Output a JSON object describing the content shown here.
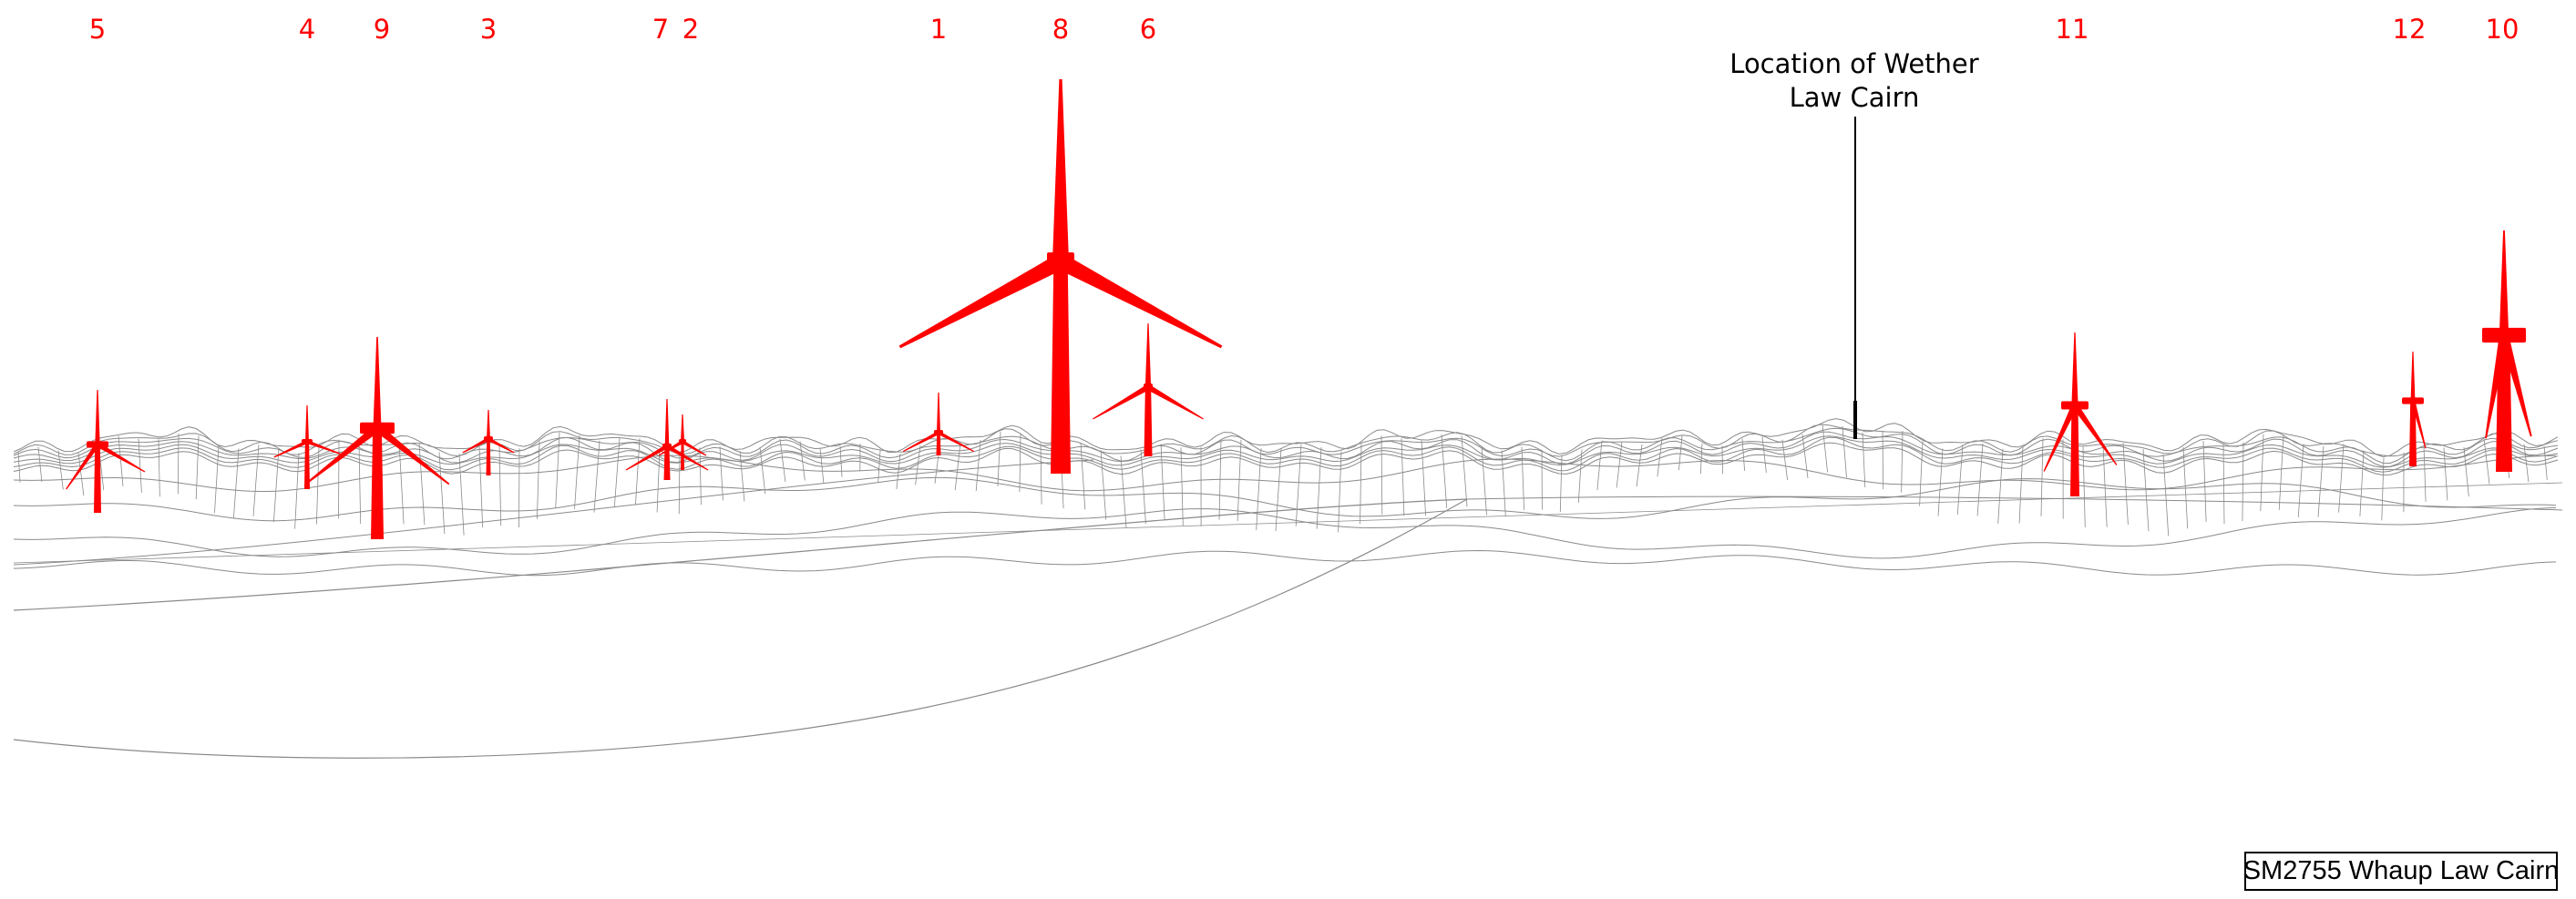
{
  "colors": {
    "turbine": "#ff0000",
    "wireframe": "#8a8a8a",
    "cairn": "#000000",
    "background": "#ffffff"
  },
  "turbines": [
    {
      "number": "5"
    },
    {
      "number": "4"
    },
    {
      "number": "9"
    },
    {
      "number": "3"
    },
    {
      "number": "7"
    },
    {
      "number": "2"
    },
    {
      "number": "1"
    },
    {
      "number": "8"
    },
    {
      "number": "6"
    },
    {
      "number": "11"
    },
    {
      "number": "12"
    },
    {
      "number": "10"
    }
  ],
  "cairn": {
    "label_line1": "Location of Wether",
    "label_line2": "Law Cairn"
  },
  "view_title": "SM2755 Whaup Law Cairn"
}
